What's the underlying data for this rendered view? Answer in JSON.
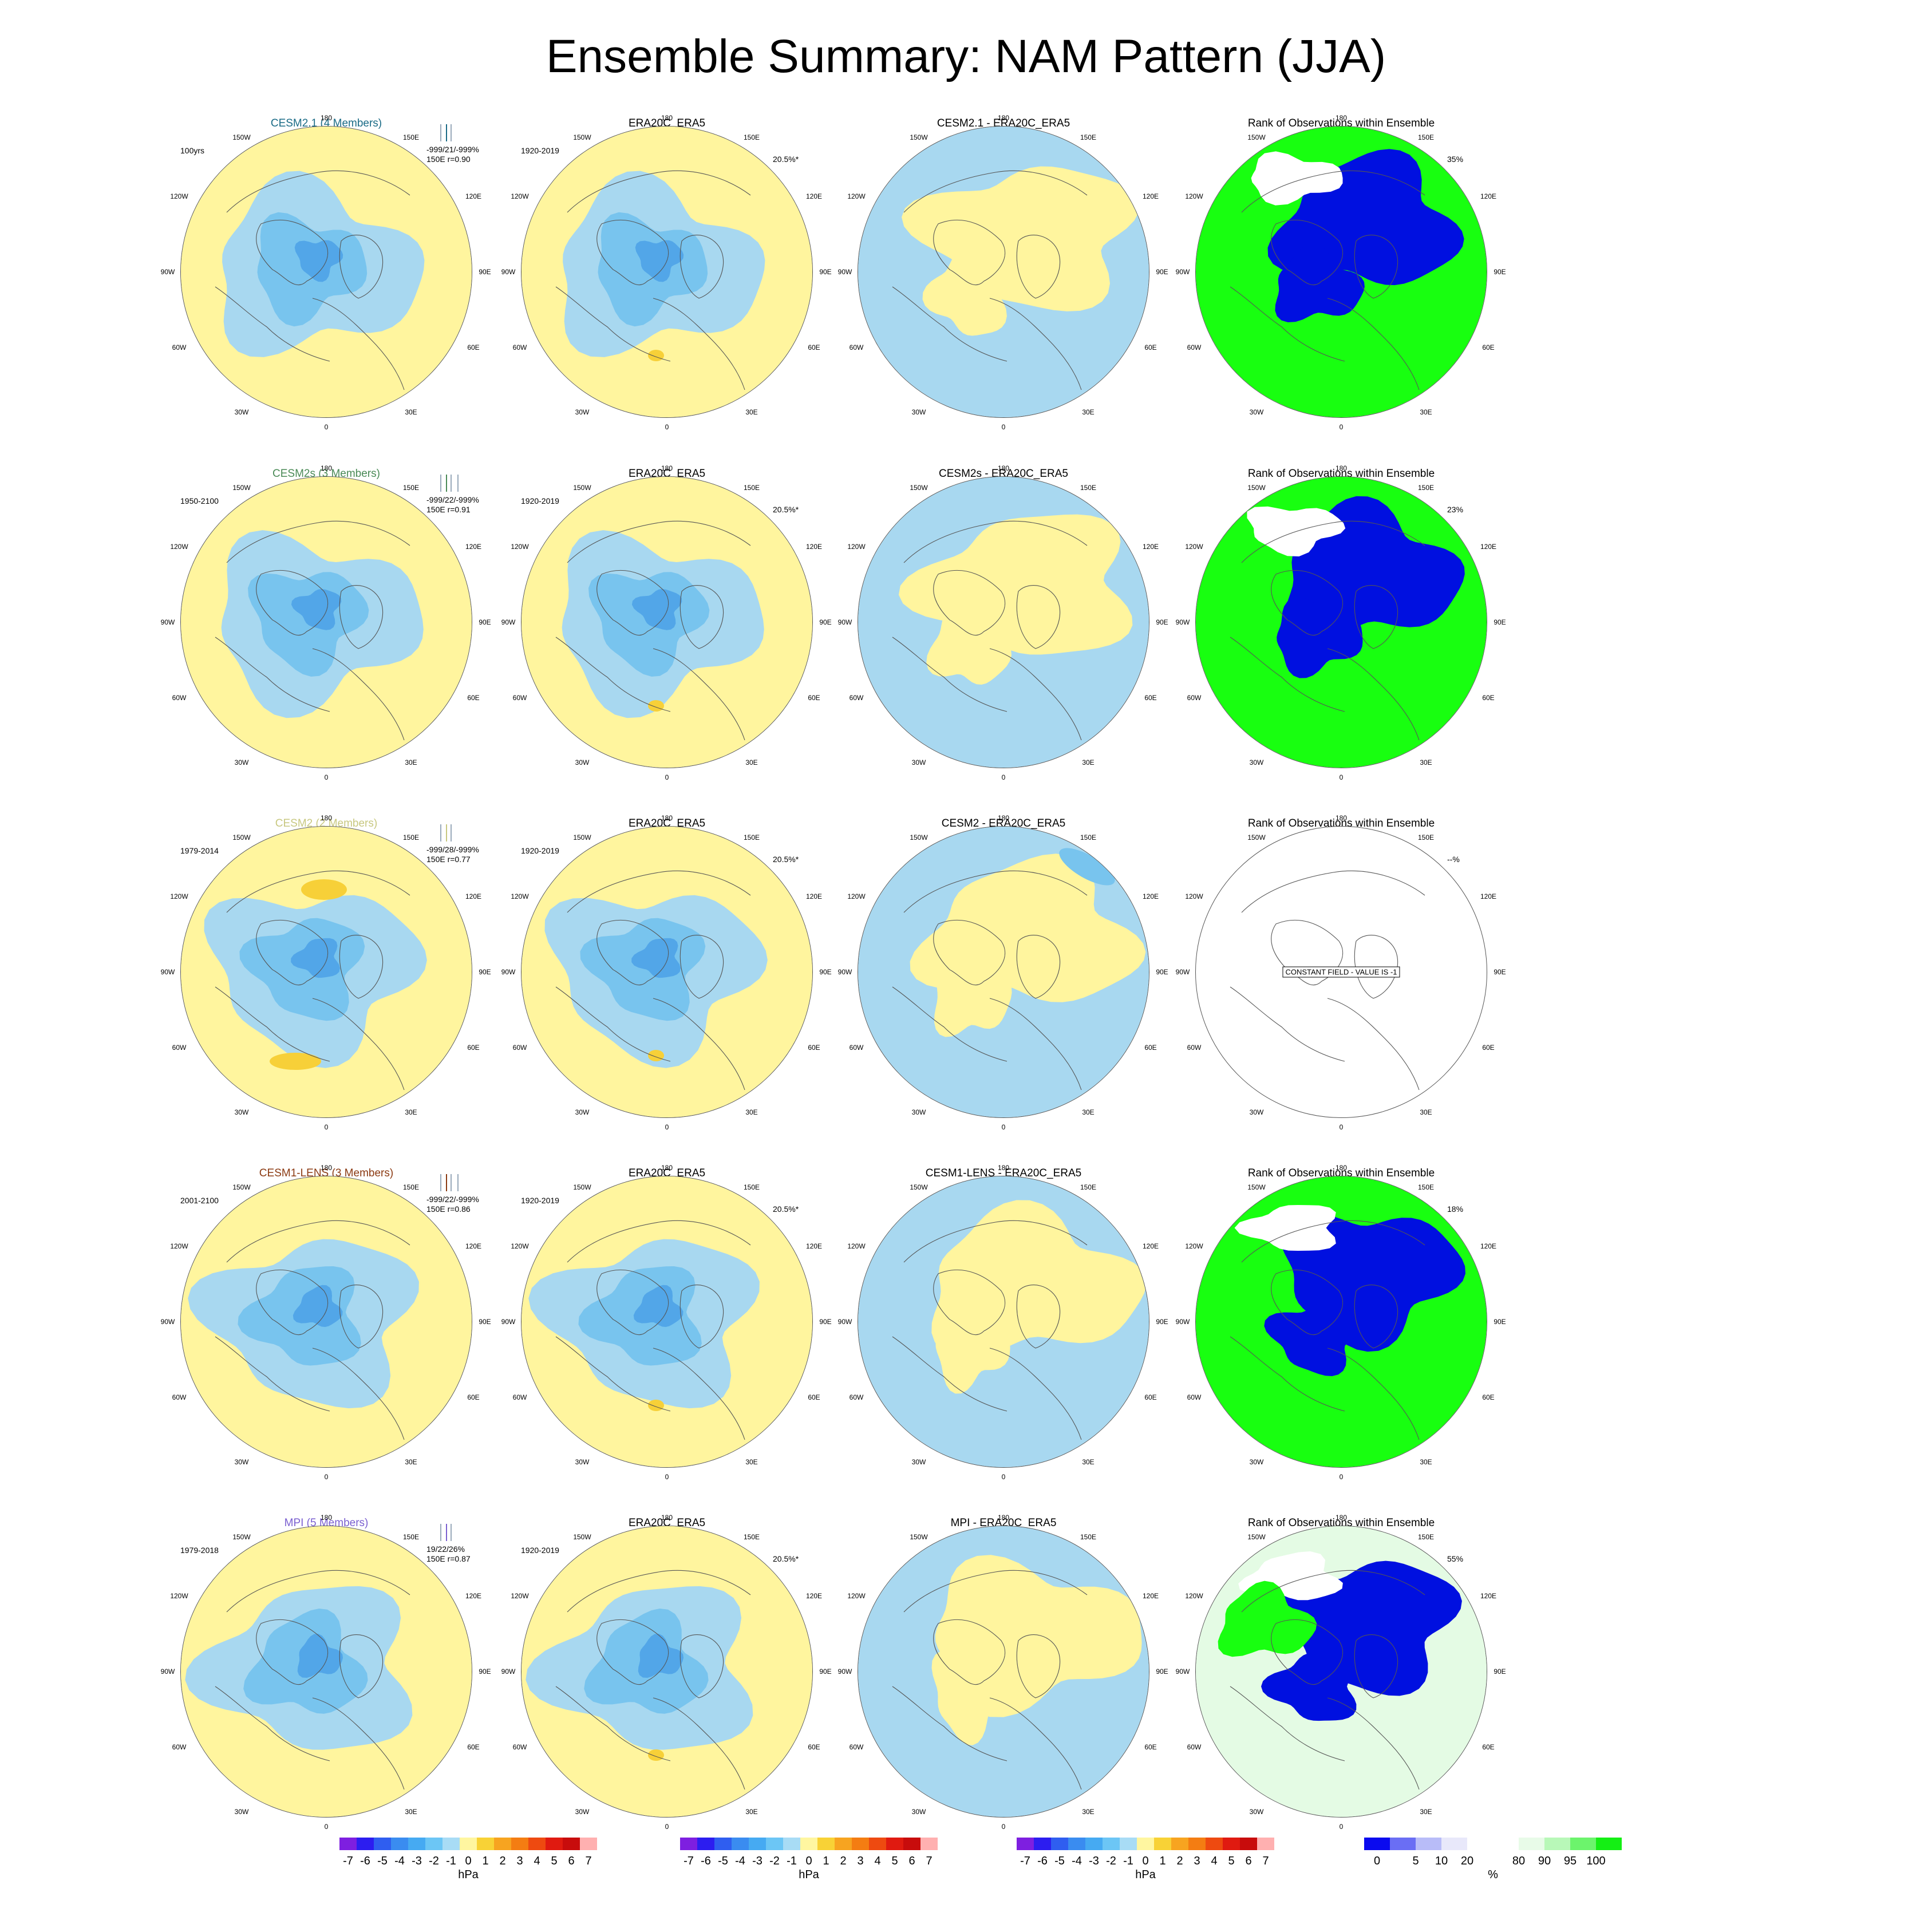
{
  "title": "Ensemble Summary: NAM Pattern (JJA)",
  "longitude_labels": {
    "top": "180",
    "bottom": "0",
    "upper_left": "150W",
    "upper_right": "150E",
    "mid_upper_left": "120W",
    "mid_upper_right": "120E",
    "left": "90W",
    "right": "90E",
    "mid_lower_left": "60W",
    "mid_lower_right": "60E",
    "lower_left": "30W",
    "lower_right": "30E"
  },
  "colors": {
    "neg_light": "#a8d8f0",
    "neg_mid": "#78c4ee",
    "neg_dark": "#52a6e8",
    "pos_light": "#fff59e",
    "pos_mid": "#f7d038",
    "rank_low": "#0010e0",
    "rank_high": "#18ff10",
    "rank_pale": "#e4fbe4"
  },
  "rows": [
    {
      "model": {
        "title": "CESM2.1 (4 Members)",
        "color": "#1a6b86",
        "period": "100yrs",
        "stats_1": "-999/21/-999%",
        "stats_2": "150E r=0.90"
      },
      "obs": {
        "title": "ERA20C_ERA5",
        "period": "1920-2019",
        "pct": "20.5%*"
      },
      "diff": {
        "title": "CESM2.1 - ERA20C_ERA5"
      },
      "rank": {
        "title": "Rank of Observations within Ensemble",
        "pct": "35%",
        "constant": ""
      }
    },
    {
      "model": {
        "title": "CESM2s (3 Members)",
        "color": "#4a8a56",
        "period": "1950-2100",
        "stats_1": "-999/22/-999%",
        "stats_2": "150E r=0.91"
      },
      "obs": {
        "title": "ERA20C_ERA5",
        "period": "1920-2019",
        "pct": "20.5%*"
      },
      "diff": {
        "title": "CESM2s - ERA20C_ERA5"
      },
      "rank": {
        "title": "Rank of Observations within Ensemble",
        "pct": "23%",
        "constant": ""
      }
    },
    {
      "model": {
        "title": "CESM2 (2 Members)",
        "color": "#c8c880",
        "period": "1979-2014",
        "stats_1": "-999/28/-999%",
        "stats_2": "150E r=0.77"
      },
      "obs": {
        "title": "ERA20C_ERA5",
        "period": "1920-2019",
        "pct": "20.5%*"
      },
      "diff": {
        "title": "CESM2 - ERA20C_ERA5"
      },
      "rank": {
        "title": "Rank of Observations within Ensemble",
        "pct": "--%",
        "constant": "CONSTANT FIELD - VALUE IS -1"
      }
    },
    {
      "model": {
        "title": "CESM1-LENS (3 Members)",
        "color": "#8b3a12",
        "period": "2001-2100",
        "stats_1": "-999/22/-999%",
        "stats_2": "150E r=0.86"
      },
      "obs": {
        "title": "ERA20C_ERA5",
        "period": "1920-2019",
        "pct": "20.5%*"
      },
      "diff": {
        "title": "CESM1-LENS - ERA20C_ERA5"
      },
      "rank": {
        "title": "Rank of Observations within Ensemble",
        "pct": "18%",
        "constant": ""
      }
    },
    {
      "model": {
        "title": "MPI (5 Members)",
        "color": "#7a5fd0",
        "period": "1979-2018",
        "stats_1": "19/22/26%",
        "stats_2": "150E r=0.87"
      },
      "obs": {
        "title": "ERA20C_ERA5",
        "period": "1920-2019",
        "pct": "20.5%*"
      },
      "diff": {
        "title": "MPI - ERA20C_ERA5"
      },
      "rank": {
        "title": "Rank of Observations within Ensemble",
        "pct": "55%",
        "constant": ""
      }
    }
  ],
  "colorbars": {
    "hpa": {
      "colors": [
        "#7e1fe0",
        "#2c1df0",
        "#2f5ef0",
        "#3a8cf0",
        "#46aaf2",
        "#6cc6f5",
        "#a8dcf5",
        "#fff6a0",
        "#f8d236",
        "#f7a420",
        "#f47d12",
        "#ee4a10",
        "#e01a10",
        "#c80c0c",
        "#ffb0b0"
      ],
      "labels": [
        "-7",
        "-6",
        "-5",
        "-4",
        "-3",
        "-2",
        "-1",
        "0",
        "1",
        "2",
        "3",
        "4",
        "5",
        "6",
        "7"
      ],
      "unit": "hPa"
    },
    "rank": {
      "colors": [
        "#0a0aef",
        "#6a6ef4",
        "#b8bcf8",
        "#e8e8fa",
        "#ffffff",
        "#ffffff",
        "#e8fbe8",
        "#b8f8b8",
        "#6cf46c",
        "#14ef14"
      ],
      "labels": [
        "0",
        "5",
        "10",
        "20",
        "80",
        "90",
        "95",
        "100"
      ],
      "unit": "%"
    }
  }
}
